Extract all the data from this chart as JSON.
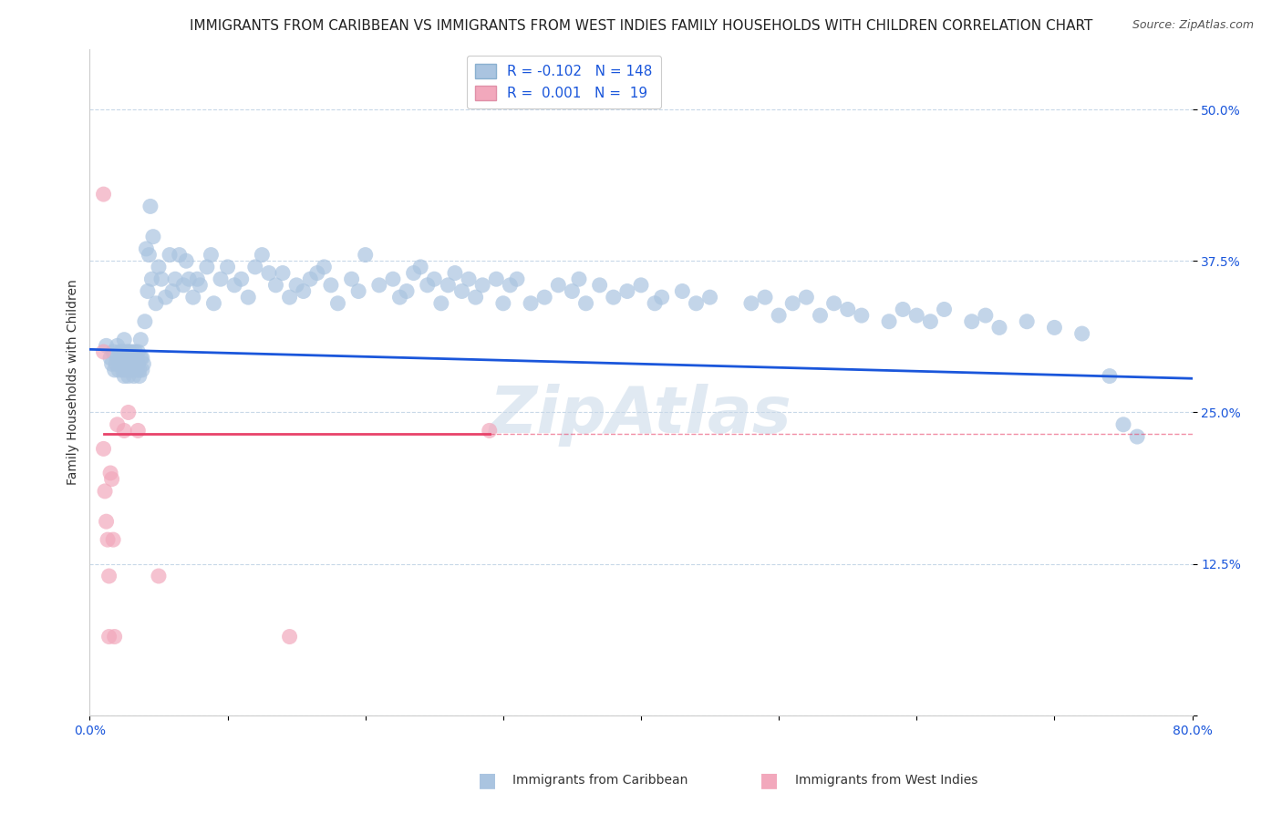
{
  "title": "IMMIGRANTS FROM CARIBBEAN VS IMMIGRANTS FROM WEST INDIES FAMILY HOUSEHOLDS WITH CHILDREN CORRELATION CHART",
  "source": "Source: ZipAtlas.com",
  "ylabel": "Family Households with Children",
  "xlim": [
    0.0,
    0.8
  ],
  "ylim": [
    0.0,
    0.55
  ],
  "yticks": [
    0.0,
    0.125,
    0.25,
    0.375,
    0.5
  ],
  "ytick_labels": [
    "",
    "12.5%",
    "25.0%",
    "37.5%",
    "50.0%"
  ],
  "xticks": [
    0.0,
    0.1,
    0.2,
    0.3,
    0.4,
    0.5,
    0.6,
    0.7,
    0.8
  ],
  "xtick_labels": [
    "0.0%",
    "",
    "",
    "",
    "",
    "",
    "",
    "",
    "80.0%"
  ],
  "blue_R": -0.102,
  "blue_N": 148,
  "pink_R": 0.001,
  "pink_N": 19,
  "blue_color": "#aac4e0",
  "pink_color": "#f2a8bc",
  "blue_line_color": "#1a56db",
  "pink_line_color": "#e8436a",
  "legend_blue_label": "Immigrants from Caribbean",
  "legend_pink_label": "Immigrants from West Indies",
  "background_color": "#ffffff",
  "grid_color": "#c8d8e8",
  "watermark": "ZipAtlas",
  "title_fontsize": 11,
  "source_fontsize": 9,
  "axis_label_fontsize": 10,
  "tick_fontsize": 10,
  "legend_fontsize": 11,
  "blue_line_x0": 0.0,
  "blue_line_y0": 0.302,
  "blue_line_x1": 0.8,
  "blue_line_y1": 0.278,
  "pink_line_x0": 0.01,
  "pink_line_y0": 0.232,
  "pink_line_x1": 0.29,
  "pink_line_y1": 0.232,
  "blue_x": [
    0.012,
    0.015,
    0.016,
    0.017,
    0.018,
    0.019,
    0.02,
    0.02,
    0.021,
    0.022,
    0.022,
    0.023,
    0.023,
    0.024,
    0.024,
    0.025,
    0.025,
    0.025,
    0.026,
    0.026,
    0.027,
    0.027,
    0.028,
    0.028,
    0.028,
    0.029,
    0.029,
    0.03,
    0.03,
    0.031,
    0.031,
    0.032,
    0.032,
    0.033,
    0.033,
    0.034,
    0.034,
    0.035,
    0.035,
    0.036,
    0.036,
    0.037,
    0.037,
    0.038,
    0.038,
    0.039,
    0.04,
    0.041,
    0.042,
    0.043,
    0.044,
    0.045,
    0.046,
    0.048,
    0.05,
    0.052,
    0.055,
    0.058,
    0.06,
    0.062,
    0.065,
    0.068,
    0.07,
    0.072,
    0.075,
    0.078,
    0.08,
    0.085,
    0.088,
    0.09,
    0.095,
    0.1,
    0.105,
    0.11,
    0.115,
    0.12,
    0.125,
    0.13,
    0.135,
    0.14,
    0.145,
    0.15,
    0.155,
    0.16,
    0.165,
    0.17,
    0.175,
    0.18,
    0.19,
    0.195,
    0.2,
    0.21,
    0.22,
    0.225,
    0.23,
    0.235,
    0.24,
    0.245,
    0.25,
    0.255,
    0.26,
    0.265,
    0.27,
    0.275,
    0.28,
    0.285,
    0.295,
    0.3,
    0.305,
    0.31,
    0.32,
    0.33,
    0.34,
    0.35,
    0.355,
    0.36,
    0.37,
    0.38,
    0.39,
    0.4,
    0.41,
    0.415,
    0.43,
    0.44,
    0.45,
    0.48,
    0.49,
    0.5,
    0.51,
    0.52,
    0.53,
    0.54,
    0.55,
    0.56,
    0.58,
    0.59,
    0.6,
    0.61,
    0.62,
    0.64,
    0.65,
    0.66,
    0.68,
    0.7,
    0.72,
    0.74,
    0.75,
    0.76
  ],
  "blue_y": [
    0.305,
    0.295,
    0.29,
    0.3,
    0.285,
    0.29,
    0.305,
    0.295,
    0.285,
    0.29,
    0.3,
    0.295,
    0.3,
    0.285,
    0.3,
    0.29,
    0.28,
    0.31,
    0.29,
    0.3,
    0.285,
    0.295,
    0.3,
    0.28,
    0.295,
    0.29,
    0.3,
    0.285,
    0.295,
    0.3,
    0.29,
    0.28,
    0.295,
    0.29,
    0.3,
    0.285,
    0.295,
    0.29,
    0.3,
    0.28,
    0.285,
    0.295,
    0.31,
    0.285,
    0.295,
    0.29,
    0.325,
    0.385,
    0.35,
    0.38,
    0.42,
    0.36,
    0.395,
    0.34,
    0.37,
    0.36,
    0.345,
    0.38,
    0.35,
    0.36,
    0.38,
    0.355,
    0.375,
    0.36,
    0.345,
    0.36,
    0.355,
    0.37,
    0.38,
    0.34,
    0.36,
    0.37,
    0.355,
    0.36,
    0.345,
    0.37,
    0.38,
    0.365,
    0.355,
    0.365,
    0.345,
    0.355,
    0.35,
    0.36,
    0.365,
    0.37,
    0.355,
    0.34,
    0.36,
    0.35,
    0.38,
    0.355,
    0.36,
    0.345,
    0.35,
    0.365,
    0.37,
    0.355,
    0.36,
    0.34,
    0.355,
    0.365,
    0.35,
    0.36,
    0.345,
    0.355,
    0.36,
    0.34,
    0.355,
    0.36,
    0.34,
    0.345,
    0.355,
    0.35,
    0.36,
    0.34,
    0.355,
    0.345,
    0.35,
    0.355,
    0.34,
    0.345,
    0.35,
    0.34,
    0.345,
    0.34,
    0.345,
    0.33,
    0.34,
    0.345,
    0.33,
    0.34,
    0.335,
    0.33,
    0.325,
    0.335,
    0.33,
    0.325,
    0.335,
    0.325,
    0.33,
    0.32,
    0.325,
    0.32,
    0.315,
    0.28,
    0.24,
    0.23
  ],
  "pink_x": [
    0.01,
    0.01,
    0.01,
    0.011,
    0.012,
    0.013,
    0.014,
    0.014,
    0.015,
    0.016,
    0.017,
    0.018,
    0.02,
    0.025,
    0.028,
    0.035,
    0.05,
    0.145,
    0.29
  ],
  "pink_y": [
    0.43,
    0.3,
    0.22,
    0.185,
    0.16,
    0.145,
    0.115,
    0.065,
    0.2,
    0.195,
    0.145,
    0.065,
    0.24,
    0.235,
    0.25,
    0.235,
    0.115,
    0.065,
    0.235
  ]
}
